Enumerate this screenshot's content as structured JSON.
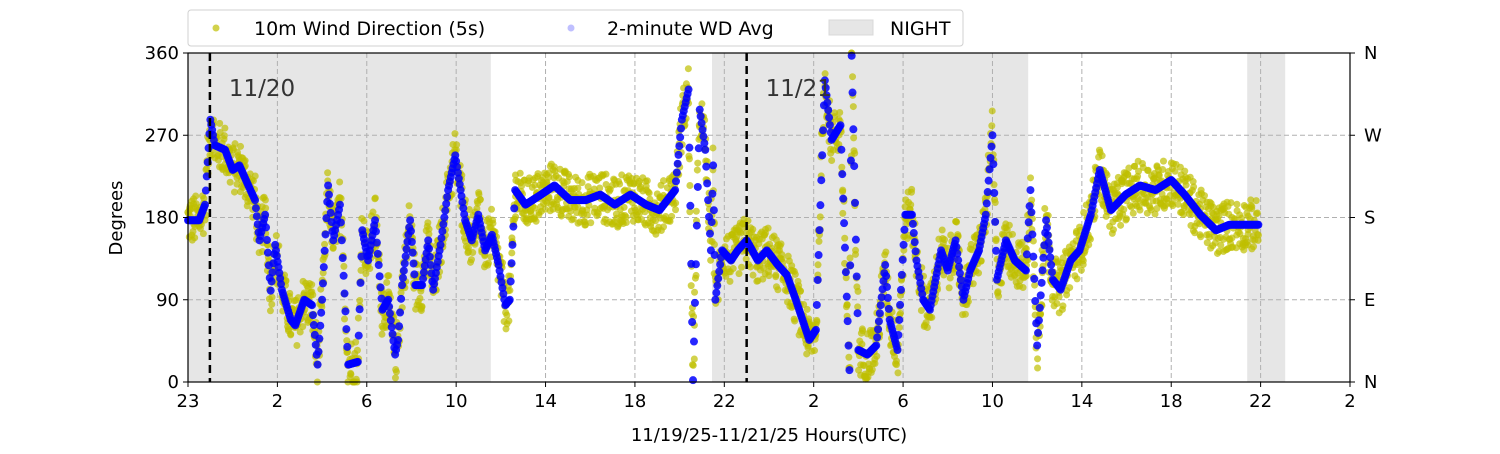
{
  "chart_data": {
    "type": "scatter",
    "title": "",
    "xlabel": "11/19/25-11/21/25  Hours(UTC)",
    "ylabel": "Degrees",
    "xlim": [
      0,
      52
    ],
    "ylim": [
      0,
      360
    ],
    "grid": true,
    "legend_placement": "top-center (above plot)",
    "x_ticks": [
      {
        "h": 0,
        "label": "23"
      },
      {
        "h": 4,
        "label": "2"
      },
      {
        "h": 8,
        "label": "6"
      },
      {
        "h": 12,
        "label": "10"
      },
      {
        "h": 16,
        "label": "14"
      },
      {
        "h": 20,
        "label": "18"
      },
      {
        "h": 24,
        "label": "22"
      },
      {
        "h": 28,
        "label": "2"
      },
      {
        "h": 32,
        "label": "6"
      },
      {
        "h": 36,
        "label": "10"
      },
      {
        "h": 40,
        "label": "14"
      },
      {
        "h": 44,
        "label": "18"
      },
      {
        "h": 48,
        "label": "22"
      },
      {
        "h": 52,
        "label": "2"
      }
    ],
    "y_ticks": [
      0,
      90,
      180,
      270,
      360
    ],
    "y_ticks_right": [
      {
        "v": 0,
        "label": "N"
      },
      {
        "v": 90,
        "label": "E"
      },
      {
        "v": 180,
        "label": "S"
      },
      {
        "v": 270,
        "label": "W"
      },
      {
        "v": 360,
        "label": "N"
      }
    ],
    "legend": [
      {
        "label": "10m Wind Direction (5s)",
        "color": "#bfbf00",
        "kind": "dot"
      },
      {
        "label": "2-minute WD Avg",
        "color": "#0000ff",
        "kind": "dot-faded"
      },
      {
        "label": "NIGHT",
        "color": "#e6e6e6",
        "kind": "patch"
      }
    ],
    "night_spans": [
      [
        0,
        13.55
      ],
      [
        23.45,
        37.6
      ],
      [
        47.4,
        49.1
      ]
    ],
    "day_markers": [
      {
        "h": 0.98,
        "label": "11/20"
      },
      {
        "h": 25.0,
        "label": "11/21"
      }
    ],
    "series": [
      {
        "name": "2-minute WD Avg",
        "color": "#0000ff",
        "points": [
          [
            0,
            177
          ],
          [
            0.5,
            177
          ],
          [
            0.76,
            194
          ],
          [
            1.0,
            287
          ],
          [
            1.2,
            259
          ],
          [
            1.66,
            254
          ],
          [
            2.0,
            232
          ],
          [
            2.3,
            237
          ],
          [
            2.7,
            215
          ],
          [
            3.0,
            199
          ],
          [
            3.2,
            155
          ],
          [
            3.45,
            183
          ],
          [
            3.7,
            100
          ],
          [
            3.9,
            150
          ],
          [
            4.2,
            101
          ],
          [
            4.6,
            68
          ],
          [
            4.8,
            62
          ],
          [
            5.2,
            90
          ],
          [
            5.55,
            84
          ],
          [
            5.8,
            19
          ],
          [
            6.0,
            90
          ],
          [
            6.27,
            215
          ],
          [
            6.5,
            155
          ],
          [
            6.8,
            194
          ],
          [
            7.17,
            19
          ],
          [
            7.6,
            22
          ],
          [
            7.8,
            166
          ],
          [
            8.06,
            133
          ],
          [
            8.37,
            177
          ],
          [
            8.7,
            79
          ],
          [
            8.96,
            90
          ],
          [
            9.27,
            30
          ],
          [
            9.4,
            46
          ],
          [
            9.58,
            106
          ],
          [
            9.94,
            177
          ],
          [
            10.17,
            106
          ],
          [
            10.48,
            106
          ],
          [
            10.75,
            155
          ],
          [
            10.97,
            101
          ],
          [
            11.3,
            150
          ],
          [
            11.64,
            210
          ],
          [
            11.96,
            248
          ],
          [
            12.2,
            210
          ],
          [
            12.4,
            177
          ],
          [
            12.7,
            155
          ],
          [
            12.99,
            183
          ],
          [
            13.3,
            144
          ],
          [
            13.6,
            161
          ],
          [
            13.9,
            128
          ],
          [
            14.2,
            84
          ],
          [
            14.4,
            90
          ],
          [
            14.64,
            210
          ],
          [
            15.1,
            194
          ],
          [
            15.8,
            205
          ],
          [
            16.4,
            215
          ],
          [
            17.1,
            199
          ],
          [
            17.8,
            199
          ],
          [
            18.45,
            205
          ],
          [
            19.1,
            194
          ],
          [
            19.8,
            205
          ],
          [
            20.5,
            194
          ],
          [
            21.1,
            188
          ],
          [
            21.8,
            210
          ],
          [
            22.1,
            287
          ],
          [
            22.4,
            320
          ],
          [
            22.6,
            2
          ],
          [
            22.9,
            298
          ],
          [
            23.15,
            254
          ],
          [
            23.4,
            144
          ],
          [
            23.5,
            237
          ],
          [
            23.6,
            90
          ],
          [
            23.9,
            144
          ],
          [
            24.3,
            133
          ],
          [
            24.6,
            144
          ],
          [
            25.0,
            155
          ],
          [
            25.5,
            133
          ],
          [
            25.9,
            144
          ],
          [
            26.4,
            128
          ],
          [
            26.8,
            117
          ],
          [
            27.2,
            90
          ],
          [
            27.5,
            68
          ],
          [
            27.8,
            46
          ],
          [
            28.1,
            57
          ],
          [
            28.5,
            330
          ],
          [
            28.8,
            265
          ],
          [
            29.2,
            281
          ],
          [
            29.6,
            13
          ],
          [
            29.7,
            357
          ],
          [
            30.0,
            35
          ],
          [
            30.4,
            30
          ],
          [
            30.8,
            40
          ],
          [
            31.2,
            128
          ],
          [
            31.4,
            68
          ],
          [
            31.75,
            35
          ],
          [
            32.1,
            183
          ],
          [
            32.4,
            183
          ],
          [
            32.6,
            133
          ],
          [
            32.9,
            90
          ],
          [
            33.2,
            79
          ],
          [
            33.7,
            144
          ],
          [
            34.0,
            122
          ],
          [
            34.35,
            155
          ],
          [
            34.7,
            90
          ],
          [
            35.0,
            122
          ],
          [
            35.4,
            144
          ],
          [
            35.7,
            183
          ],
          [
            36.0,
            270
          ],
          [
            36.2,
            112
          ],
          [
            36.6,
            155
          ],
          [
            37.0,
            133
          ],
          [
            37.5,
            122
          ],
          [
            37.7,
            210
          ],
          [
            38.0,
            40
          ],
          [
            38.4,
            177
          ],
          [
            38.7,
            112
          ],
          [
            39.05,
            101
          ],
          [
            39.5,
            133
          ],
          [
            39.9,
            144
          ],
          [
            40.4,
            183
          ],
          [
            40.8,
            232
          ],
          [
            41.3,
            188
          ],
          [
            41.96,
            205
          ],
          [
            42.6,
            215
          ],
          [
            43.3,
            210
          ],
          [
            44.0,
            221
          ],
          [
            44.6,
            205
          ],
          [
            45.3,
            183
          ],
          [
            46.0,
            166
          ],
          [
            46.6,
            172
          ],
          [
            47.3,
            172
          ],
          [
            47.9,
            172
          ]
        ]
      },
      {
        "name": "10m Wind Direction (5s)",
        "color": "#bfbf00",
        "spread_deg": 28,
        "note_values_follow": "2-minute WD Avg"
      }
    ]
  }
}
